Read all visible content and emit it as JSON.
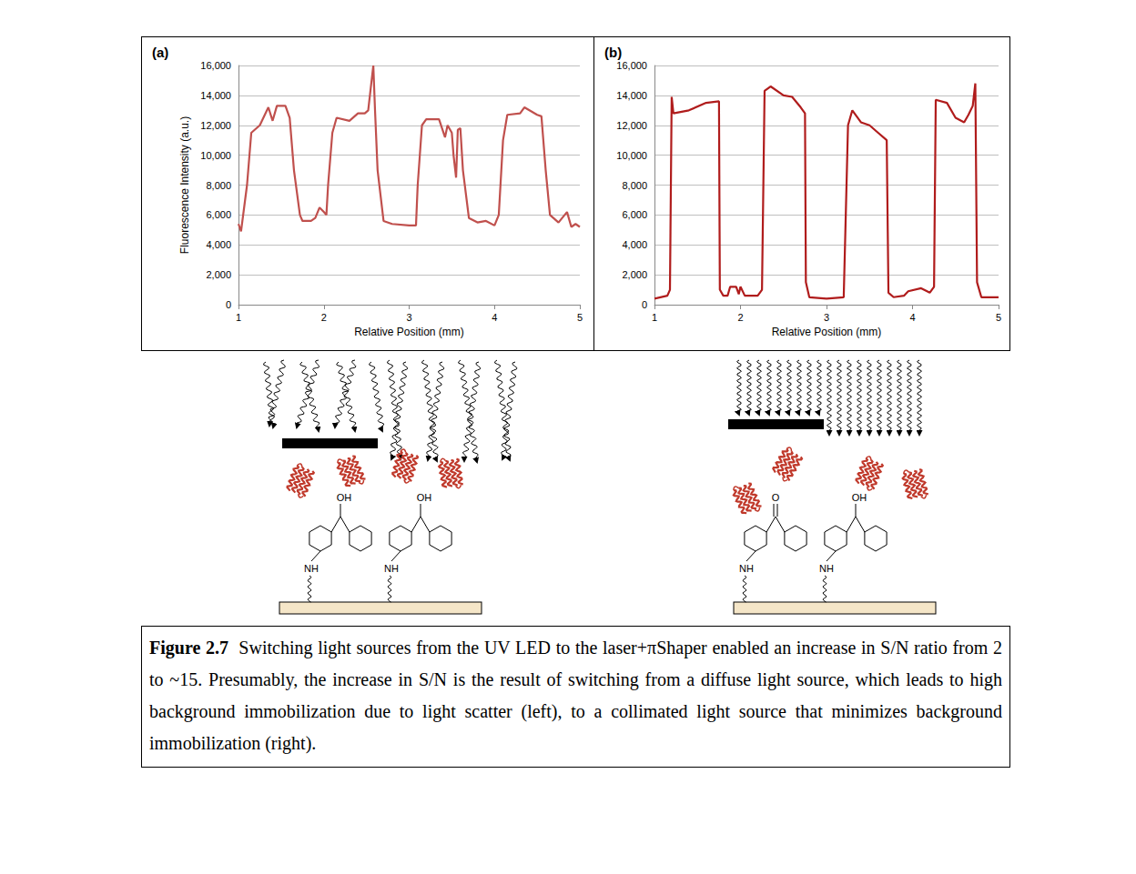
{
  "chart_data": [
    {
      "type": "line",
      "title": "(a)",
      "y_label": "Fluorescence Intensity (a.u.)",
      "x_label": "Relative Position (mm)",
      "color": "#c0504d",
      "grid": true,
      "xlim": [
        1,
        5
      ],
      "xticks": [
        1,
        2,
        3,
        4,
        5
      ],
      "ylim": [
        0,
        16000
      ],
      "yticks": [
        0,
        2000,
        4000,
        6000,
        8000,
        10000,
        12000,
        14000,
        16000
      ],
      "x": [
        1.0,
        1.03,
        1.1,
        1.15,
        1.25,
        1.35,
        1.4,
        1.45,
        1.55,
        1.6,
        1.65,
        1.72,
        1.75,
        1.85,
        1.9,
        1.95,
        2.0,
        2.03,
        2.05,
        2.1,
        2.15,
        2.3,
        2.4,
        2.48,
        2.52,
        2.55,
        2.58,
        2.6,
        2.63,
        2.7,
        2.8,
        3.0,
        3.08,
        3.1,
        3.15,
        3.2,
        3.35,
        3.42,
        3.45,
        3.5,
        3.52,
        3.55,
        3.57,
        3.6,
        3.63,
        3.7,
        3.8,
        3.9,
        4.0,
        4.05,
        4.1,
        4.15,
        4.3,
        4.35,
        4.5,
        4.55,
        4.6,
        4.65,
        4.75,
        4.85,
        4.9,
        4.95,
        5.0
      ],
      "values": [
        5400,
        4900,
        8000,
        11500,
        12000,
        13200,
        12300,
        13300,
        13300,
        12500,
        9000,
        6000,
        5600,
        5600,
        5800,
        6500,
        6200,
        6000,
        8000,
        11500,
        12500,
        12300,
        12800,
        12800,
        13000,
        14500,
        16000,
        13000,
        9000,
        5600,
        5400,
        5300,
        5300,
        8000,
        12000,
        12400,
        12400,
        11200,
        12000,
        11500,
        10000,
        8500,
        11700,
        11800,
        9000,
        5800,
        5500,
        5600,
        5300,
        6000,
        11000,
        12700,
        12800,
        13200,
        12700,
        12600,
        9000,
        6000,
        5500,
        6200,
        5200,
        5400,
        5200
      ]
    },
    {
      "type": "line",
      "title": "(b)",
      "x_label": "Relative Position (mm)",
      "color": "#b01c1c",
      "grid": true,
      "xlim": [
        1,
        5
      ],
      "xticks": [
        1,
        2,
        3,
        4,
        5
      ],
      "ylim": [
        0,
        16000
      ],
      "yticks": [
        0,
        2000,
        4000,
        6000,
        8000,
        10000,
        12000,
        14000,
        16000
      ],
      "x": [
        1.0,
        1.15,
        1.18,
        1.2,
        1.22,
        1.4,
        1.6,
        1.75,
        1.76,
        1.8,
        1.85,
        1.88,
        1.95,
        1.98,
        2.0,
        2.05,
        2.2,
        2.25,
        2.28,
        2.35,
        2.5,
        2.6,
        2.7,
        2.75,
        2.76,
        2.8,
        3.0,
        3.2,
        3.25,
        3.3,
        3.4,
        3.5,
        3.6,
        3.7,
        3.72,
        3.78,
        3.9,
        3.95,
        4.1,
        4.2,
        4.25,
        4.27,
        4.4,
        4.5,
        4.6,
        4.65,
        4.7,
        4.73,
        4.75,
        4.8,
        5.0
      ],
      "values": [
        400,
        600,
        1000,
        13900,
        12800,
        13000,
        13500,
        13600,
        1000,
        600,
        600,
        1200,
        1200,
        700,
        1200,
        600,
        600,
        1000,
        14300,
        14600,
        14000,
        13900,
        13200,
        12800,
        1500,
        500,
        400,
        500,
        12000,
        13000,
        12200,
        12000,
        11500,
        11000,
        800,
        500,
        600,
        900,
        1100,
        800,
        1200,
        13700,
        13500,
        12500,
        12200,
        12700,
        13300,
        14800,
        1500,
        500,
        500
      ]
    }
  ],
  "diagrams": [
    {
      "groups": [
        {
          "top": "OH",
          "linker": "NH"
        },
        {
          "top": "OH",
          "linker": "NH"
        }
      ]
    },
    {
      "groups": [
        {
          "top": "O",
          "linker": "NH"
        },
        {
          "top": "OH",
          "linker": "NH"
        }
      ]
    }
  ],
  "caption": {
    "label": "Figure 2.7",
    "text": "Switching light sources from the UV LED to the laser+πShaper enabled an increase in S/N ratio from 2 to ~15. Presumably, the increase in S/N is the result of switching from a diffuse light source, which leads to high background immobilization due to light scatter (left), to a collimated light source that minimizes background immobilization (right)."
  }
}
